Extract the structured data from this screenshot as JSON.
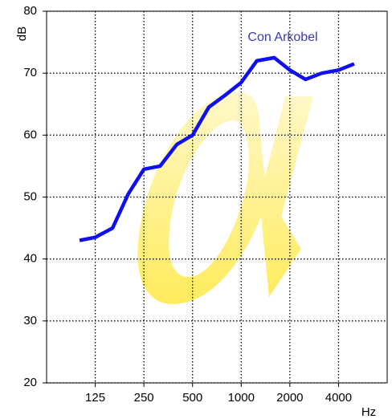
{
  "chart_data": {
    "type": "line",
    "ylabel": "dB",
    "xlabel": "Hz",
    "x": [
      100,
      125,
      160,
      200,
      250,
      315,
      400,
      500,
      630,
      800,
      1000,
      1250,
      1600,
      2000,
      2500,
      3150,
      4000,
      5000
    ],
    "series": [
      {
        "name": "Con Arkobel",
        "color": "#1010ee",
        "values": [
          43,
          43.5,
          45,
          50.5,
          54.5,
          55,
          58.5,
          60,
          64.5,
          66.5,
          68.5,
          72,
          72.5,
          70.5,
          69,
          70,
          70.5,
          71.5
        ]
      }
    ],
    "xlim": [
      62.5,
      8000
    ],
    "xticks": [
      125,
      250,
      500,
      1000,
      2000,
      4000
    ],
    "xscale": "log",
    "ylim": [
      20,
      80
    ],
    "yticks": [
      20,
      30,
      40,
      50,
      60,
      70,
      80
    ],
    "grid": true
  }
}
